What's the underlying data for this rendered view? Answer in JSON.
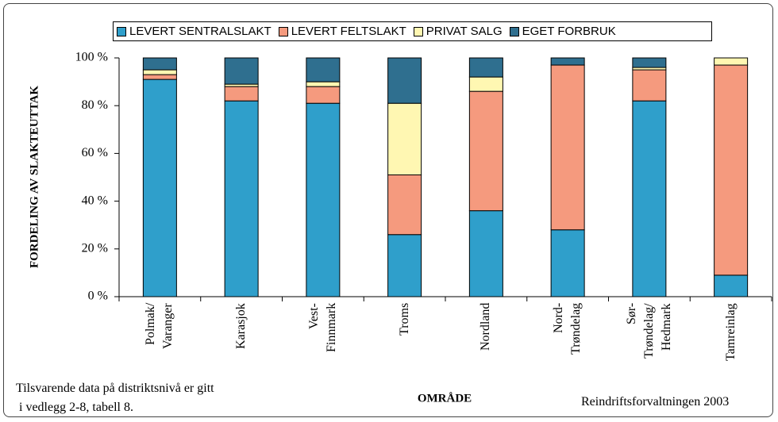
{
  "chart_data": {
    "type": "stacked_bar",
    "categories": [
      "Polmak/\nVaranger",
      "Karasjok",
      "Vest-\nFinnmark",
      "Troms",
      "Nordland",
      "Nord-\nTrøndelag",
      "Sør-\nTrøndelag/\nHedmark",
      "Tamreinlag"
    ],
    "series": [
      {
        "name": "LEVERT SENTRALSLAKT",
        "color": "#2f9fcb",
        "values": [
          91,
          82,
          81,
          26,
          36,
          28,
          82,
          9
        ]
      },
      {
        "name": "LEVERT FELTSLAKT",
        "color": "#f59a7e",
        "values": [
          2,
          6,
          7,
          25,
          50,
          69,
          13,
          88
        ]
      },
      {
        "name": "PRIVAT SALG",
        "color": "#fff7b2",
        "values": [
          2,
          1,
          2,
          30,
          6,
          0,
          1,
          3
        ]
      },
      {
        "name": "EGET FORBRUK",
        "color": "#2f6f8f",
        "values": [
          5,
          11,
          10,
          19,
          8,
          3,
          4,
          0
        ]
      }
    ],
    "ylim": [
      0,
      100
    ],
    "yticks": [
      {
        "value": 0,
        "label": "0 %"
      },
      {
        "value": 20,
        "label": "20 %"
      },
      {
        "value": 40,
        "label": "40 %"
      },
      {
        "value": 60,
        "label": "60 %"
      },
      {
        "value": 80,
        "label": "80 %"
      },
      {
        "value": 100,
        "label": "100 %"
      }
    ],
    "xlabel": "OMRÅDE",
    "ylabel": "FORDELING AV SLAKTEUTTAK",
    "note": "Tilsvarende data på distriktsnivå er gitt\n i vedlegg 2-8, tabell 8.",
    "source": "Reindriftsforvaltningen 2003",
    "legend": "top"
  }
}
